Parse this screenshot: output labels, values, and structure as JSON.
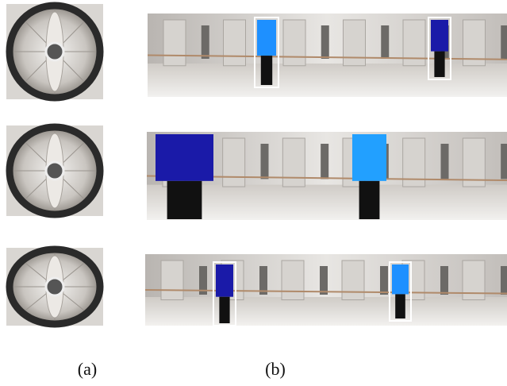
{
  "figure": {
    "labels": [
      "(a)",
      "(b)"
    ]
  }
}
